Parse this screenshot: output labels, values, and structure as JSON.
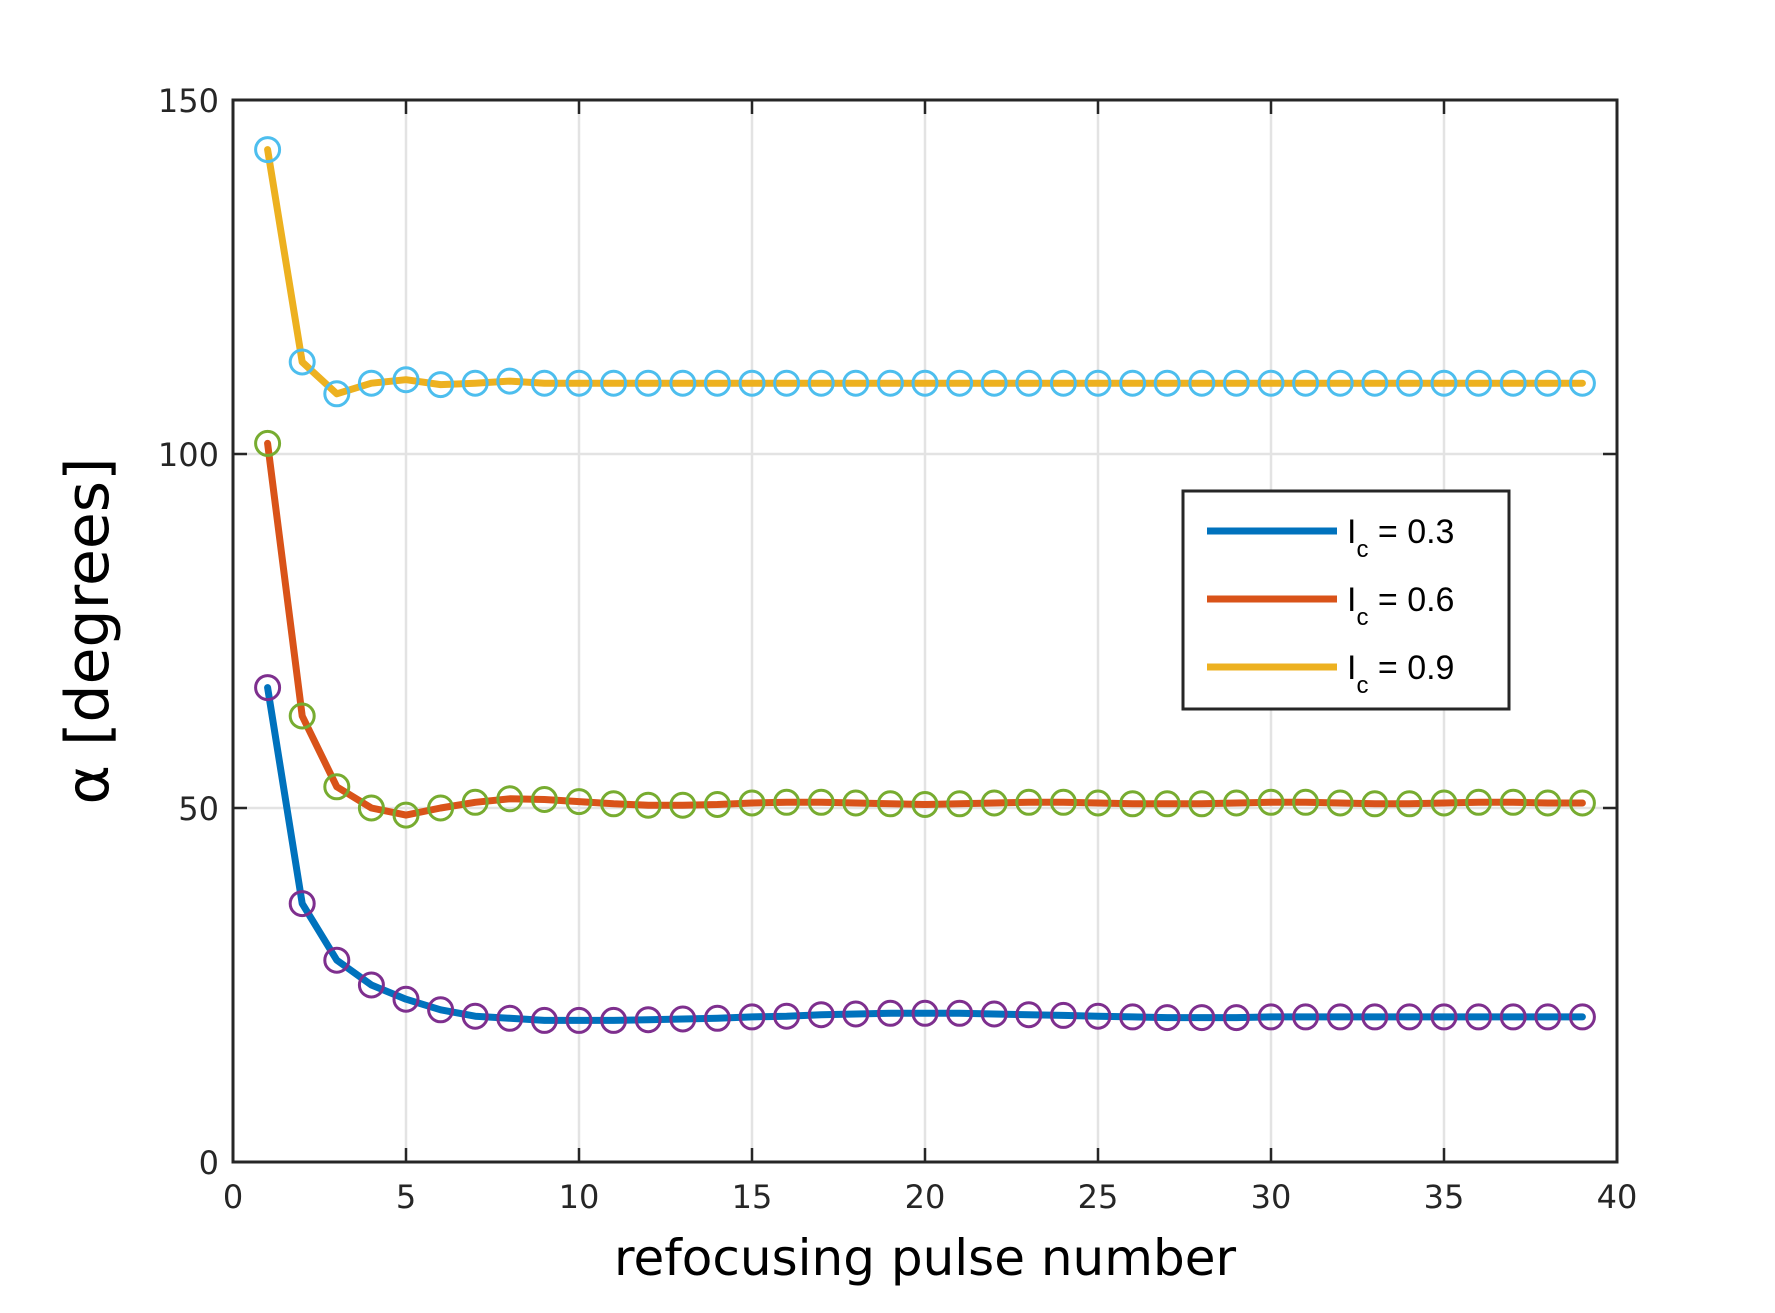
{
  "chart_data": {
    "type": "line",
    "title": "",
    "xlabel": "refocusing pulse number",
    "ylabel": "α [degrees]",
    "xlim": [
      0,
      40
    ],
    "ylim": [
      0,
      150
    ],
    "xticks": [
      0,
      5,
      10,
      15,
      20,
      25,
      30,
      35,
      40
    ],
    "yticks": [
      0,
      50,
      100,
      150
    ],
    "grid": true,
    "legend_position": "center-right",
    "x": [
      1,
      2,
      3,
      4,
      5,
      6,
      7,
      8,
      9,
      10,
      11,
      12,
      13,
      14,
      15,
      16,
      17,
      18,
      19,
      20,
      21,
      22,
      23,
      24,
      25,
      26,
      27,
      28,
      29,
      30,
      31,
      32,
      33,
      34,
      35,
      36,
      37,
      38,
      39
    ],
    "series": [
      {
        "name": "I_c = 0.3",
        "legend_main": "I",
        "legend_sub": "c",
        "legend_value": " = 0.3",
        "line_color": "#0072BD",
        "marker_color": "#7E2F8E",
        "values": [
          67.0,
          36.5,
          28.5,
          25.0,
          23.0,
          21.5,
          20.6,
          20.3,
          20.0,
          20.0,
          20.0,
          20.1,
          20.2,
          20.3,
          20.5,
          20.6,
          20.8,
          20.9,
          21.0,
          21.0,
          21.0,
          20.9,
          20.8,
          20.7,
          20.6,
          20.5,
          20.4,
          20.4,
          20.4,
          20.5,
          20.5,
          20.5,
          20.5,
          20.5,
          20.5,
          20.5,
          20.5,
          20.5,
          20.5
        ]
      },
      {
        "name": "I_c = 0.6",
        "legend_main": "I",
        "legend_sub": "c",
        "legend_value": " = 0.6",
        "line_color": "#D95319",
        "marker_color": "#77AC30",
        "values": [
          101.5,
          63.0,
          53.0,
          50.0,
          49.0,
          50.0,
          50.8,
          51.3,
          51.2,
          50.9,
          50.6,
          50.4,
          50.4,
          50.5,
          50.7,
          50.8,
          50.8,
          50.7,
          50.6,
          50.5,
          50.6,
          50.7,
          50.8,
          50.8,
          50.7,
          50.6,
          50.6,
          50.6,
          50.7,
          50.8,
          50.8,
          50.7,
          50.6,
          50.6,
          50.7,
          50.8,
          50.8,
          50.7,
          50.7
        ]
      },
      {
        "name": "I_c = 0.9",
        "legend_main": "I",
        "legend_sub": "c",
        "legend_value": " = 0.9",
        "line_color": "#EDB120",
        "marker_color": "#4DBEEE",
        "values": [
          143.0,
          113.0,
          108.5,
          110.0,
          110.5,
          109.8,
          110.0,
          110.3,
          110.0,
          110.0,
          110.0,
          110.0,
          110.0,
          110.0,
          110.0,
          110.0,
          110.0,
          110.0,
          110.0,
          110.0,
          110.0,
          110.0,
          110.0,
          110.0,
          110.0,
          110.0,
          110.0,
          110.0,
          110.0,
          110.0,
          110.0,
          110.0,
          110.0,
          110.0,
          110.0,
          110.0,
          110.0,
          110.0,
          110.0
        ]
      }
    ]
  }
}
